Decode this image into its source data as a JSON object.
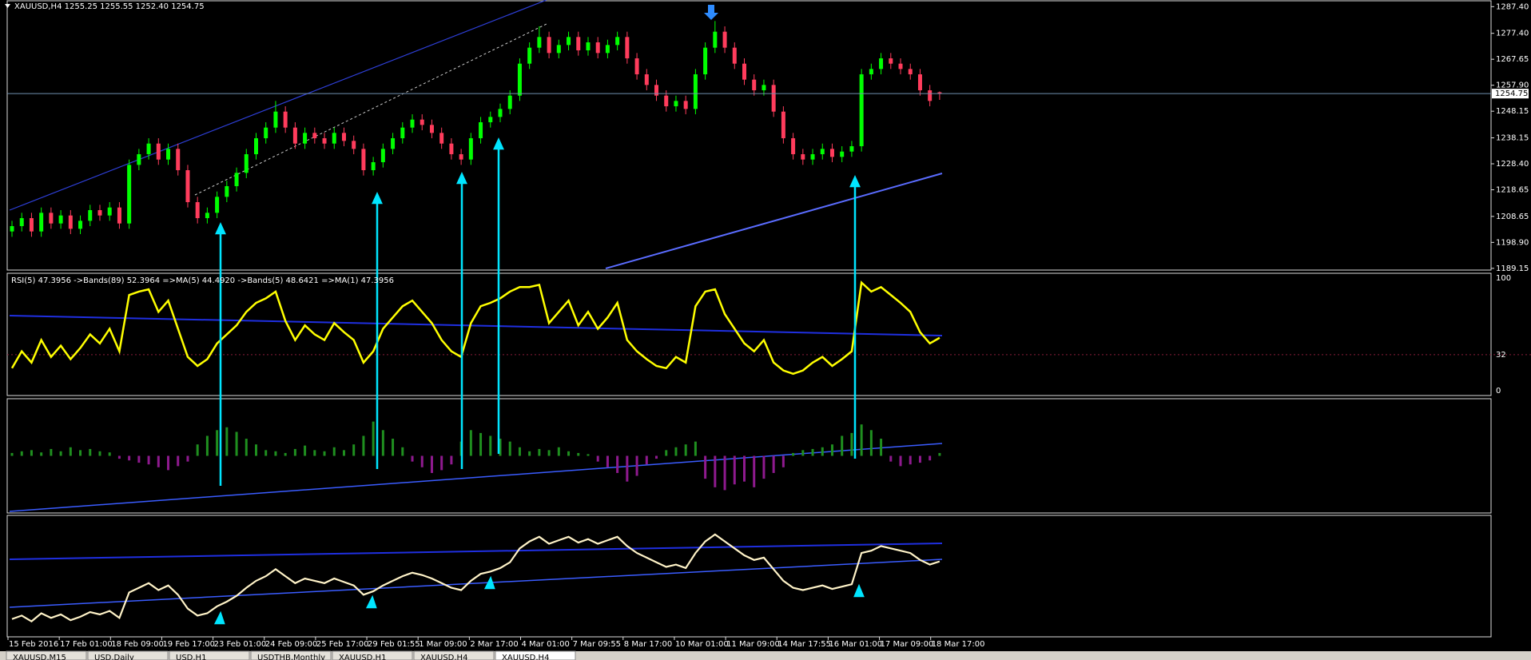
{
  "chart_data": [
    {
      "type": "candlestick",
      "title": "XAUUSD,H4  1255.25 1255.55 1252.40 1254.75",
      "open": [
        1203,
        1205,
        1208,
        1203,
        1210,
        1206,
        1209,
        1204,
        1207,
        1211,
        1209,
        1212,
        1206,
        1228,
        1232,
        1236,
        1230,
        1234,
        1226,
        1214,
        1208,
        1210,
        1216,
        1220,
        1225,
        1232,
        1238,
        1242,
        1248,
        1242,
        1236,
        1240,
        1238,
        1236,
        1240,
        1237,
        1234,
        1226,
        1229,
        1234,
        1238,
        1242,
        1245,
        1243,
        1240,
        1236,
        1232,
        1230,
        1238,
        1244,
        1246,
        1249,
        1254,
        1266,
        1272,
        1276,
        1270,
        1273,
        1276,
        1271,
        1274,
        1270,
        1273,
        1276,
        1268,
        1262,
        1258,
        1254,
        1250,
        1252,
        1249,
        1262,
        1272,
        1278,
        1272,
        1266,
        1260,
        1256,
        1258,
        1248,
        1238,
        1232,
        1230,
        1232,
        1234,
        1231,
        1233,
        1235,
        1262,
        1264,
        1268,
        1266,
        1264,
        1262,
        1256,
        1255.25
      ],
      "high": [
        1207,
        1210,
        1210,
        1212,
        1212,
        1211,
        1211,
        1209,
        1213,
        1213,
        1214,
        1214,
        1230,
        1234,
        1238,
        1238,
        1236,
        1236,
        1228,
        1216,
        1212,
        1218,
        1222,
        1227,
        1234,
        1240,
        1244,
        1252,
        1250,
        1244,
        1242,
        1242,
        1240,
        1242,
        1242,
        1239,
        1236,
        1231,
        1236,
        1240,
        1244,
        1247,
        1247,
        1245,
        1242,
        1238,
        1234,
        1240,
        1246,
        1248,
        1251,
        1256,
        1268,
        1274,
        1280,
        1278,
        1275,
        1278,
        1278,
        1276,
        1276,
        1275,
        1278,
        1278,
        1270,
        1264,
        1260,
        1256,
        1254,
        1254,
        1264,
        1274,
        1282,
        1280,
        1274,
        1268,
        1262,
        1260,
        1260,
        1250,
        1240,
        1234,
        1234,
        1236,
        1236,
        1235,
        1237,
        1264,
        1266,
        1270,
        1270,
        1268,
        1266,
        1264,
        1258,
        1255.55
      ],
      "low": [
        1201,
        1203,
        1201,
        1201,
        1204,
        1204,
        1202,
        1202,
        1205,
        1207,
        1207,
        1204,
        1204,
        1226,
        1230,
        1228,
        1228,
        1224,
        1212,
        1206,
        1206,
        1208,
        1214,
        1218,
        1223,
        1230,
        1236,
        1240,
        1240,
        1234,
        1234,
        1236,
        1234,
        1234,
        1235,
        1232,
        1224,
        1224,
        1227,
        1232,
        1236,
        1240,
        1241,
        1238,
        1234,
        1230,
        1228,
        1228,
        1236,
        1242,
        1244,
        1247,
        1252,
        1264,
        1270,
        1268,
        1268,
        1271,
        1269,
        1269,
        1268,
        1268,
        1271,
        1266,
        1260,
        1256,
        1252,
        1248,
        1248,
        1247,
        1247,
        1260,
        1270,
        1270,
        1264,
        1258,
        1254,
        1254,
        1246,
        1236,
        1230,
        1228,
        1228,
        1230,
        1229,
        1229,
        1231,
        1233,
        1260,
        1262,
        1264,
        1262,
        1260,
        1254,
        1250,
        1252.4
      ],
      "close": [
        1205,
        1208,
        1203,
        1210,
        1206,
        1209,
        1204,
        1207,
        1211,
        1209,
        1212,
        1206,
        1228,
        1232,
        1236,
        1230,
        1234,
        1226,
        1214,
        1208,
        1210,
        1216,
        1220,
        1225,
        1232,
        1238,
        1242,
        1248,
        1242,
        1236,
        1240,
        1238,
        1236,
        1240,
        1237,
        1234,
        1226,
        1229,
        1234,
        1238,
        1242,
        1245,
        1243,
        1240,
        1236,
        1232,
        1230,
        1238,
        1244,
        1246,
        1249,
        1254,
        1266,
        1272,
        1276,
        1270,
        1273,
        1276,
        1271,
        1274,
        1270,
        1273,
        1276,
        1268,
        1262,
        1258,
        1254,
        1250,
        1252,
        1249,
        1262,
        1272,
        1278,
        1272,
        1266,
        1260,
        1256,
        1258,
        1248,
        1238,
        1232,
        1230,
        1232,
        1234,
        1231,
        1233,
        1235,
        1262,
        1264,
        1268,
        1266,
        1264,
        1262,
        1256,
        1252,
        1254.75
      ],
      "up_color": "#00ff00",
      "down_color": "#ff3c5c",
      "current_price": 1254.75,
      "ylim": [
        1188.5,
        1289.3
      ],
      "yticks": [
        {
          "value": 1287.4,
          "label": "1287.40"
        },
        {
          "value": 1277.4,
          "label": "1277.40"
        },
        1267.65,
        {
          "value": 1257.9,
          "label": "1257.90"
        },
        1248.15,
        1238.15,
        {
          "value": 1228.4,
          "label": "1228.40"
        },
        1218.65,
        1208.65,
        {
          "value": 1198.9,
          "label": "1198.90"
        },
        1189.15
      ],
      "x_labels": [
        "15 Feb 2016",
        "17 Feb 01:00",
        "18 Feb 09:00",
        "19 Feb 17:00",
        "23 Feb 01:00",
        "24 Feb 09:00",
        "25 Feb 17:00",
        "29 Feb 01:55",
        "1 Mar 09:00",
        "2 Mar 17:00",
        "4 Mar 01:00",
        "7 Mar 09:55",
        "8 Mar 17:00",
        "10 Mar 01:00",
        "11 Mar 09:00",
        "14 Mar 17:55",
        "16 Mar 01:00",
        "17 Mar 09:00",
        "18 Mar 17:00"
      ]
    },
    {
      "type": "line",
      "title": "RSI(5) 47.3956  ->Bands(89) 52.3964  =>MA(5) 44.4920  ->Bands(5) 48.6421  =>MA(1) 47.3956",
      "values": [
        20,
        35,
        25,
        45,
        30,
        40,
        28,
        38,
        50,
        42,
        55,
        35,
        85,
        88,
        90,
        70,
        80,
        55,
        30,
        22,
        28,
        42,
        50,
        58,
        70,
        78,
        82,
        88,
        62,
        45,
        58,
        50,
        45,
        60,
        52,
        45,
        25,
        35,
        55,
        65,
        75,
        80,
        70,
        60,
        45,
        35,
        30,
        60,
        75,
        78,
        82,
        88,
        92,
        92,
        94,
        60,
        70,
        80,
        58,
        70,
        55,
        65,
        78,
        45,
        35,
        28,
        22,
        20,
        30,
        25,
        75,
        88,
        90,
        68,
        55,
        42,
        35,
        45,
        25,
        18,
        15,
        18,
        25,
        30,
        22,
        28,
        35,
        96,
        88,
        92,
        85,
        78,
        70,
        52,
        42,
        47
      ],
      "color": "#ffff00",
      "ylim": [
        0,
        100
      ],
      "yticks": [
        0,
        32,
        100
      ]
    },
    {
      "type": "bar",
      "values": [
        5,
        8,
        10,
        6,
        12,
        8,
        15,
        10,
        12,
        8,
        6,
        -5,
        -8,
        -12,
        -15,
        -20,
        -25,
        -18,
        -10,
        20,
        35,
        45,
        50,
        42,
        30,
        20,
        10,
        8,
        5,
        12,
        18,
        10,
        8,
        15,
        10,
        20,
        35,
        60,
        45,
        30,
        15,
        -10,
        -20,
        -30,
        -25,
        -15,
        25,
        45,
        40,
        35,
        30,
        25,
        15,
        8,
        12,
        10,
        15,
        8,
        5,
        3,
        -10,
        -20,
        -30,
        -45,
        -35,
        -15,
        -5,
        10,
        15,
        20,
        25,
        -40,
        -55,
        -60,
        -50,
        -45,
        -55,
        -40,
        -30,
        -20,
        5,
        10,
        12,
        15,
        20,
        35,
        40,
        55,
        45,
        30,
        -10,
        -18,
        -15,
        -12,
        -8,
        5
      ],
      "color": "#1f8f1f",
      "negative_color": "#8e1a8e",
      "ylim": [
        -100,
        100
      ]
    }
  ],
  "tabs": [
    "XAUUSD,M15",
    "USD,Daily",
    "USD,H1",
    "USDTHB,Monthly",
    "XAUUSD,H1",
    "XAUUSD,H4",
    "XAUUSD,H4"
  ]
}
